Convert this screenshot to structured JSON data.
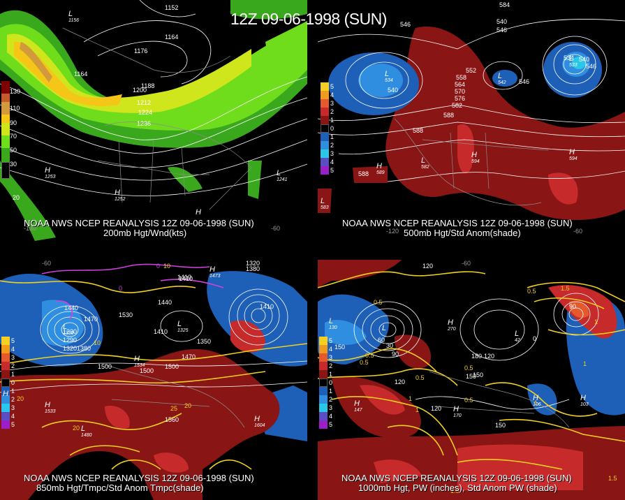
{
  "title": "12Z 09-06-1998 (SUN)",
  "panels": [
    {
      "id": "top-left",
      "credit": "NOAA NWS NCEP REANALYSIS 12Z 09-06-1998 (SUN)",
      "subtitle": "200mb Hgt/Wnd(kts)",
      "legend": [
        "130",
        "110",
        "90",
        "70",
        "50",
        "30"
      ],
      "centers": [
        {
          "type": "H",
          "value": "1253"
        },
        {
          "type": "H",
          "value": "1252"
        },
        {
          "type": "H",
          "value": ""
        },
        {
          "type": "L",
          "value": "1241"
        },
        {
          "type": "L",
          "value": "1156"
        }
      ],
      "contour_labels": [
        "1152",
        "1164",
        "1176",
        "1164",
        "1188",
        "1200",
        "1212",
        "1224",
        "1236"
      ],
      "lon_labels": [
        "-130",
        "-60"
      ],
      "extra_label": "20"
    },
    {
      "id": "top-right",
      "credit": "NOAA NWS NCEP REANALYSIS 12Z 09-06-1998 (SUN)",
      "subtitle": "500mb Hgt/Std Anom(shade)",
      "legend": [
        "5",
        "4",
        "3",
        "2",
        "1",
        "0",
        "1",
        "2",
        "3",
        "4",
        "5"
      ],
      "centers": [
        {
          "type": "L",
          "value": "534"
        },
        {
          "type": "L",
          "value": "542"
        },
        {
          "type": "L",
          "value": "533"
        },
        {
          "type": "L",
          "value": "582"
        },
        {
          "type": "L",
          "value": "583"
        },
        {
          "type": "H",
          "value": "594"
        },
        {
          "type": "H",
          "value": "594"
        },
        {
          "type": "H",
          "value": "589"
        }
      ],
      "contour_labels": [
        "584",
        "546",
        "540",
        "546",
        "552",
        "558",
        "564",
        "570",
        "576",
        "582",
        "588",
        "540",
        "546",
        "588",
        "588",
        "540",
        "546",
        "534"
      ],
      "lon_labels": [
        "-120",
        "-60"
      ]
    },
    {
      "id": "bottom-left",
      "credit": "NOAA NWS NCEP REANALYSIS 12Z 09-06-1998 (SUN)",
      "subtitle": "850mb Hgt/Tmpc/Std Anom Tmpc(shade)",
      "legend": [
        "5",
        "4",
        "3",
        "2",
        "1",
        "0",
        "1",
        "2",
        "3",
        "4",
        "5"
      ],
      "centers": [
        {
          "type": "L",
          "value": "1330"
        },
        {
          "type": "L",
          "value": "1325"
        },
        {
          "type": "L",
          "value": "1480"
        },
        {
          "type": "H",
          "value": "1533"
        },
        {
          "type": "H",
          "value": "1604"
        },
        {
          "type": "H",
          "value": "1534"
        },
        {
          "type": "H",
          "value": "1473"
        },
        {
          "type": "H",
          "value": ""
        }
      ],
      "contour_labels": [
        "1320",
        "1380",
        "1440",
        "1410",
        "1470",
        "1530",
        "1500",
        "1410",
        "1350",
        "1470",
        "1500",
        "1500",
        "1560",
        "1440",
        "1410",
        "1230",
        "1290",
        "1320",
        "1380",
        "1410"
      ],
      "temp_labels": [
        "0",
        "10",
        "20",
        "25",
        "20",
        "20",
        "0",
        "10"
      ],
      "lon_labels": [
        "-60"
      ]
    },
    {
      "id": "bottom-right",
      "credit": "NOAA NWS NCEP REANALYSIS 12Z 09-06-1998 (SUN)",
      "subtitle": "1000mb Hgt, PW (inches), Std Anom PW (shade)",
      "legend": [
        "5",
        "4",
        "3",
        "2",
        "1",
        "0",
        "1",
        "2",
        "3",
        "4",
        "5"
      ],
      "centers": [
        {
          "type": "L",
          "value": "130"
        },
        {
          "type": "L",
          "value": "42"
        },
        {
          "type": "L",
          "value": ""
        },
        {
          "type": "H",
          "value": "270"
        },
        {
          "type": "H",
          "value": "147"
        },
        {
          "type": "H",
          "value": "103"
        },
        {
          "type": "H",
          "value": "170"
        },
        {
          "type": "H",
          "value": "106"
        }
      ],
      "contour_labels": [
        "120",
        "60",
        "30",
        "150",
        "90",
        "120",
        "150",
        "180",
        "120",
        "120",
        "150",
        "150",
        "90",
        "0"
      ],
      "pw_labels": [
        "0.5",
        "0.5",
        "0.5",
        "0.5",
        "0.5",
        "1",
        "1",
        "1.5",
        "1",
        "0.5",
        "1",
        "0.5",
        "1",
        "1.5",
        "1.5"
      ],
      "lon_labels": [
        "-60"
      ]
    }
  ],
  "colors": {
    "wind": [
      "#7f0000",
      "#d39a3c",
      "#f5c518",
      "#cfe61c",
      "#6fdc1c",
      "#3aa81c"
    ],
    "anomaly_warm": [
      "#f5d023",
      "#f09a1e",
      "#e45a2c",
      "#c72a2a",
      "#8a1515"
    ],
    "anomaly_cold": [
      "#1e5fb8",
      "#2f8ee0",
      "#2ac7e8",
      "#5a4ec2",
      "#9a1fc9"
    ],
    "temperature_contour": "#f0d020",
    "freezing_contour": "#d040e0",
    "height_contour": "#ffffff"
  }
}
